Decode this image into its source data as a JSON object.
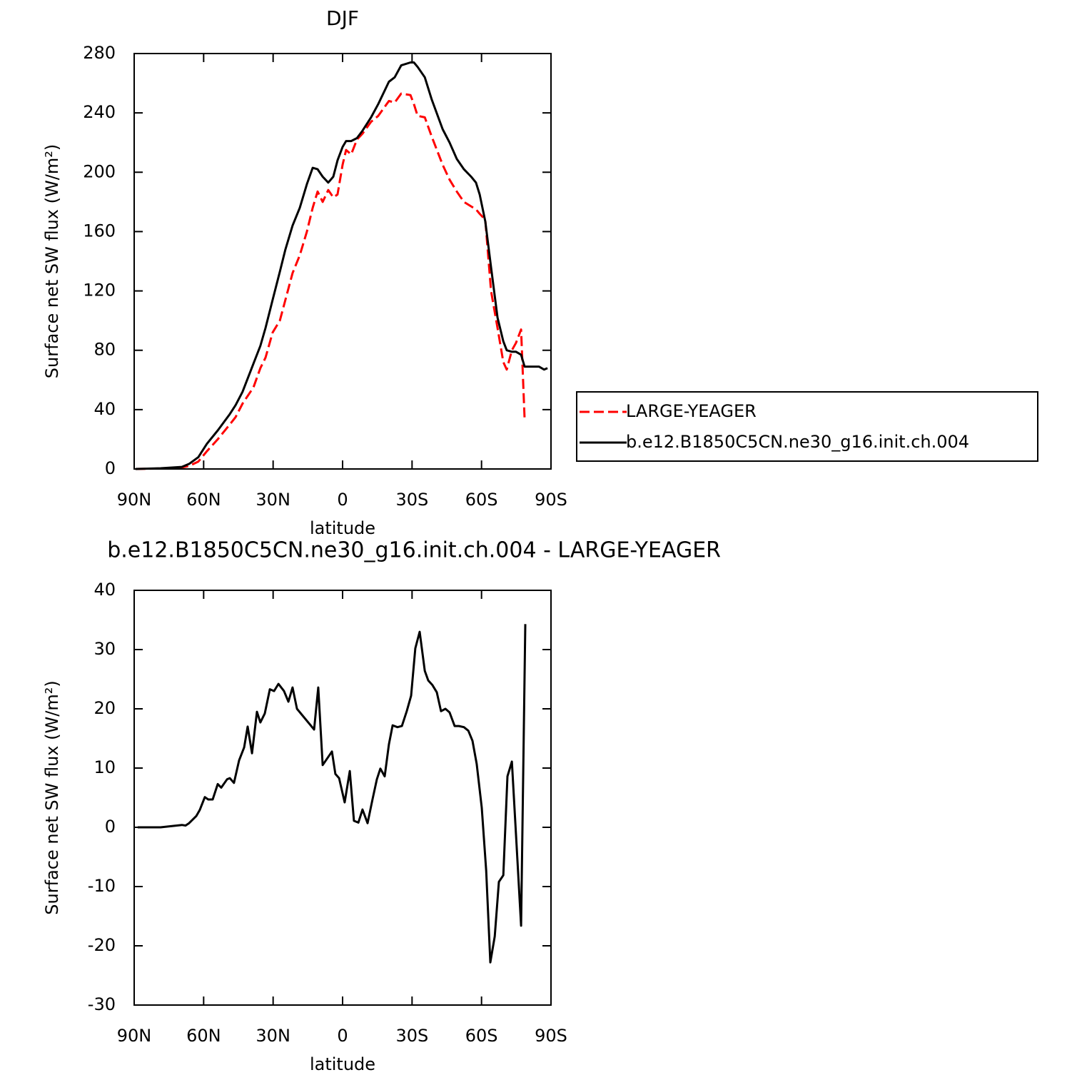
{
  "chart_data": [
    {
      "type": "line",
      "title": "DJF",
      "xlabel": "latitude",
      "ylabel": "Surface net SW flux (W/m²)",
      "xlim": [
        90,
        -90
      ],
      "xticks": [
        {
          "value": 90,
          "label": "90N"
        },
        {
          "value": 60,
          "label": "60N"
        },
        {
          "value": 30,
          "label": "30N"
        },
        0,
        {
          "value": -30,
          "label": "30S"
        },
        {
          "value": -60,
          "label": "60S"
        },
        {
          "value": -90,
          "label": "90S"
        }
      ],
      "ylim": [
        0,
        280
      ],
      "yticks": [
        0,
        40,
        80,
        120,
        160,
        200,
        240,
        280
      ],
      "legend": "right",
      "x": [
        89.4,
        78.6,
        69.4,
        66.3,
        62.3,
        58.6,
        53.9,
        48.7,
        46.2,
        43.2,
        38.5,
        35.5,
        33.3,
        30.2,
        27.1,
        24.7,
        21.6,
        18.5,
        15.4,
        12.9,
        10.8,
        8.6,
        6.2,
        4.0,
        2.2,
        0,
        -1.5,
        -3.7,
        -6.2,
        -8.6,
        -12.3,
        -15.4,
        -20,
        -22.5,
        -25.3,
        -29.3,
        -30.8,
        -32.4,
        -35.5,
        -38.5,
        -43.2,
        -46.2,
        -49.3,
        -52.4,
        -55.5,
        -57.6,
        -59.2,
        -61.6,
        -64.1,
        -66.9,
        -69.4,
        -70.9,
        -73.1,
        -74.9,
        -77.1,
        -78.6,
        -84.8,
        -87,
        -88.5
      ],
      "series": [
        {
          "name": "LARGE-YEAGER",
          "color": "#ff0000",
          "dash": "dashed",
          "values": [
            0,
            0.3,
            1,
            2,
            5,
            12,
            20,
            30,
            35,
            44,
            55,
            68,
            75,
            92,
            100,
            114,
            132,
            144,
            160,
            176,
            187,
            180,
            188,
            183,
            185,
            205,
            215,
            212,
            222,
            226,
            234,
            238,
            248,
            247,
            253,
            252,
            246,
            238,
            237,
            224,
            205,
            195,
            187,
            180,
            177,
            175,
            172,
            168,
            120,
            95,
            72,
            67,
            80,
            85,
            94,
            34,
            null,
            null,
            null
          ]
        },
        {
          "name": "b.e12.B1850C5CN.ne30_g16.init.ch.004",
          "color": "#000000",
          "dash": "solid",
          "values": [
            0,
            0.5,
            1.4,
            3.4,
            8,
            17,
            26,
            37,
            43,
            52,
            71,
            83,
            95,
            114,
            133,
            148,
            164,
            176,
            192,
            203,
            202,
            197,
            193,
            197,
            208,
            217,
            221,
            221,
            223,
            228,
            237,
            246,
            261,
            264,
            272,
            274,
            274,
            271,
            264,
            249,
            229,
            220,
            209,
            202,
            197,
            193,
            185,
            167,
            136,
            102,
            86,
            80,
            79,
            79,
            77,
            69,
            69,
            67,
            68
          ]
        }
      ]
    },
    {
      "type": "line",
      "title": "b.e12.B1850C5CN.ne30_g16.init.ch.004 - LARGE-YEAGER",
      "xlabel": "latitude",
      "ylabel": "Surface net SW flux (W/m²)",
      "xlim": [
        90,
        -90
      ],
      "xticks": [
        {
          "value": 90,
          "label": "90N"
        },
        {
          "value": 60,
          "label": "60N"
        },
        {
          "value": 30,
          "label": "30N"
        },
        0,
        {
          "value": -30,
          "label": "30S"
        },
        {
          "value": -60,
          "label": "60S"
        },
        {
          "value": -90,
          "label": "90S"
        }
      ],
      "ylim": [
        -30,
        40
      ],
      "yticks": [
        -30,
        -20,
        -10,
        0,
        10,
        20,
        30,
        40
      ],
      "x": [
        88.5,
        78.6,
        69.4,
        67.8,
        66.3,
        63.2,
        61.7,
        59.5,
        58,
        56.1,
        53.9,
        52.4,
        49.9,
        48.7,
        46.9,
        44.7,
        42.5,
        41,
        39.1,
        37,
        35.5,
        33.6,
        31.4,
        29.6,
        27.7,
        25.3,
        23.4,
        21.6,
        19.7,
        12.3,
        10.5,
        8.6,
        4.6,
        3.1,
        1.5,
        -0.9,
        -3.1,
        -4.9,
        -6.8,
        -8.6,
        -10.8,
        -12.9,
        -14.8,
        -16.3,
        -18.2,
        -20,
        -21.6,
        -23.7,
        -25.6,
        -27.7,
        -29.6,
        -31.4,
        -33.3,
        -35.5,
        -37,
        -38.8,
        -40.7,
        -42.5,
        -44.4,
        -46.2,
        -48.4,
        -50.2,
        -52.4,
        -54.3,
        -56.1,
        -57.9,
        -60.1,
        -62,
        -63.8,
        -65.7,
        -67.5,
        -69.4,
        -71.2,
        -73.1,
        -74.9,
        -77.1,
        -78.9
      ],
      "series": [
        {
          "color": "#000000",
          "dash": "solid",
          "values": [
            0,
            0,
            0.4,
            0.3,
            0.7,
            1.9,
            2.9,
            5.1,
            4.7,
            4.7,
            7.3,
            6.7,
            8.1,
            8.3,
            7.5,
            11.3,
            13.5,
            17,
            12.5,
            19.5,
            17.7,
            19.2,
            23.3,
            23,
            24.2,
            23,
            21.2,
            23.6,
            20,
            16.5,
            23.6,
            10.5,
            12.8,
            9,
            8.3,
            4.2,
            9.5,
            1.1,
            0.8,
            3,
            0.7,
            4.7,
            8.1,
            9.9,
            8.6,
            14,
            17.2,
            16.9,
            17.1,
            19.6,
            22.2,
            30.2,
            33,
            26.4,
            24.8,
            24,
            22.8,
            19.6,
            20,
            19.4,
            17.1,
            17.1,
            16.9,
            16.3,
            14.6,
            10.7,
            3.3,
            -7.3,
            -22.8,
            -18.4,
            -9.2,
            -8.1,
            8.6,
            11.1,
            -1.3,
            -16.6,
            34.3
          ]
        }
      ]
    }
  ]
}
